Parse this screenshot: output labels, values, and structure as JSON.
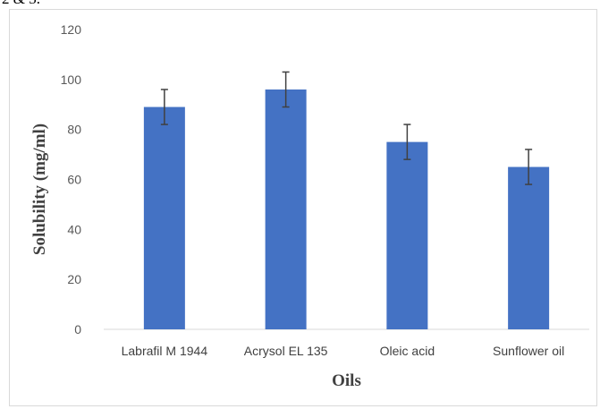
{
  "page": {
    "top_fragment": "2 & 3."
  },
  "chart_data": {
    "type": "bar",
    "categories": [
      "Labrafil M 1944",
      "Acrysol EL 135",
      "Oleic acid",
      "Sunflower oil"
    ],
    "values": [
      89,
      96,
      75,
      65
    ],
    "error": [
      7,
      7,
      7,
      7
    ],
    "title": "",
    "xlabel": "Oils",
    "ylabel": "Solubility (mg/ml)",
    "ylim": [
      0,
      120
    ],
    "yticks": [
      0,
      20,
      40,
      60,
      80,
      100,
      120
    ],
    "grid": false,
    "legend": "none",
    "colors": {
      "bar": "#4472c4",
      "error_bar": "#404040",
      "axis": "#d9d9d9"
    }
  }
}
